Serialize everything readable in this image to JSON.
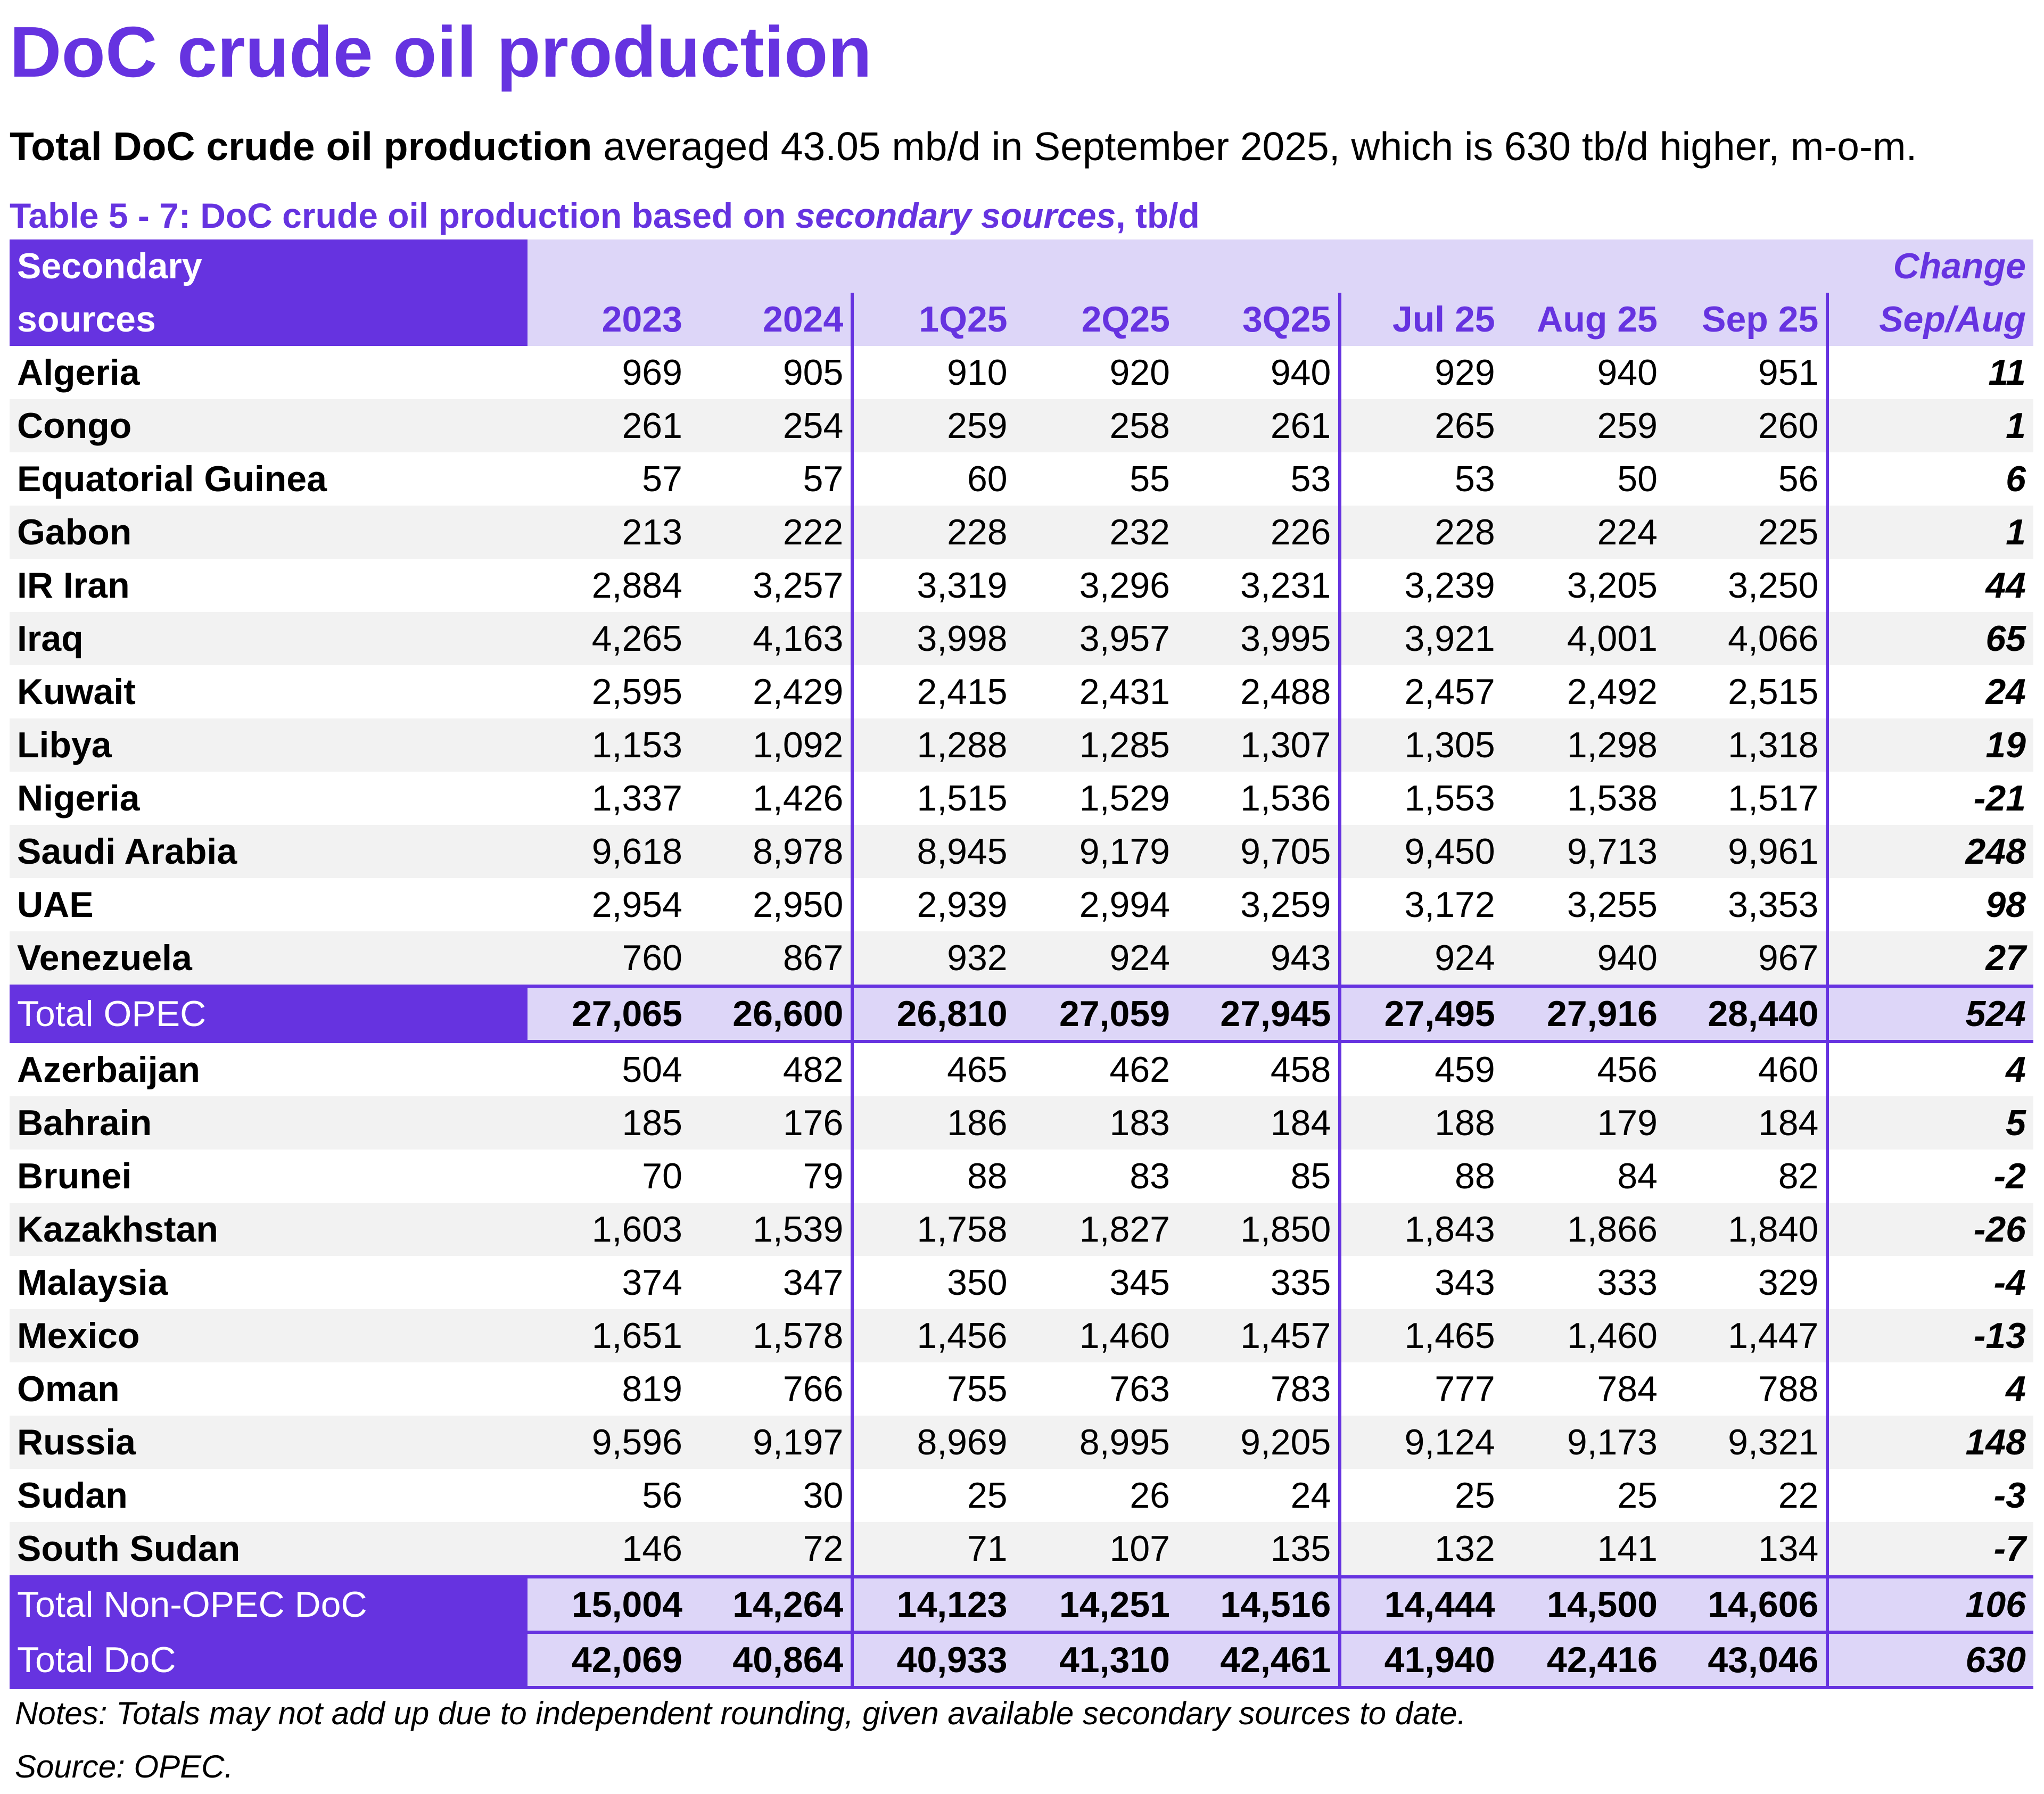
{
  "title": "DoC crude oil production",
  "lead": {
    "bold": "Total DoC crude oil production",
    "rest": " averaged 43.05 mb/d in September 2025, which is 630 tb/d higher, m-o-m."
  },
  "caption": {
    "prefix": "Table 5 - 7: DoC crude oil production based on ",
    "italic": "secondary sources",
    "suffix": ", tb/d"
  },
  "header": {
    "label_line1": "Secondary",
    "label_line2": "sources",
    "columns": [
      "2023",
      "2024",
      "1Q25",
      "2Q25",
      "3Q25",
      "Jul 25",
      "Aug 25",
      "Sep 25"
    ],
    "change_line1": "Change",
    "change_line2": "Sep/Aug"
  },
  "opec_rows": [
    {
      "name": "Algeria",
      "values": [
        "969",
        "905",
        "910",
        "920",
        "940",
        "929",
        "940",
        "951"
      ],
      "change": "11"
    },
    {
      "name": "Congo",
      "values": [
        "261",
        "254",
        "259",
        "258",
        "261",
        "265",
        "259",
        "260"
      ],
      "change": "1"
    },
    {
      "name": "Equatorial Guinea",
      "values": [
        "57",
        "57",
        "60",
        "55",
        "53",
        "53",
        "50",
        "56"
      ],
      "change": "6"
    },
    {
      "name": "Gabon",
      "values": [
        "213",
        "222",
        "228",
        "232",
        "226",
        "228",
        "224",
        "225"
      ],
      "change": "1"
    },
    {
      "name": "IR Iran",
      "values": [
        "2,884",
        "3,257",
        "3,319",
        "3,296",
        "3,231",
        "3,239",
        "3,205",
        "3,250"
      ],
      "change": "44"
    },
    {
      "name": "Iraq",
      "values": [
        "4,265",
        "4,163",
        "3,998",
        "3,957",
        "3,995",
        "3,921",
        "4,001",
        "4,066"
      ],
      "change": "65"
    },
    {
      "name": "Kuwait",
      "values": [
        "2,595",
        "2,429",
        "2,415",
        "2,431",
        "2,488",
        "2,457",
        "2,492",
        "2,515"
      ],
      "change": "24"
    },
    {
      "name": "Libya",
      "values": [
        "1,153",
        "1,092",
        "1,288",
        "1,285",
        "1,307",
        "1,305",
        "1,298",
        "1,318"
      ],
      "change": "19"
    },
    {
      "name": "Nigeria",
      "values": [
        "1,337",
        "1,426",
        "1,515",
        "1,529",
        "1,536",
        "1,553",
        "1,538",
        "1,517"
      ],
      "change": "-21"
    },
    {
      "name": "Saudi Arabia",
      "values": [
        "9,618",
        "8,978",
        "8,945",
        "9,179",
        "9,705",
        "9,450",
        "9,713",
        "9,961"
      ],
      "change": "248"
    },
    {
      "name": "UAE",
      "values": [
        "2,954",
        "2,950",
        "2,939",
        "2,994",
        "3,259",
        "3,172",
        "3,255",
        "3,353"
      ],
      "change": "98"
    },
    {
      "name": "Venezuela",
      "values": [
        "760",
        "867",
        "932",
        "924",
        "943",
        "924",
        "940",
        "967"
      ],
      "change": "27"
    }
  ],
  "total_opec": {
    "name": "Total  OPEC",
    "values": [
      "27,065",
      "26,600",
      "26,810",
      "27,059",
      "27,945",
      "27,495",
      "27,916",
      "28,440"
    ],
    "change": "524"
  },
  "nonopec_rows": [
    {
      "name": "Azerbaijan",
      "values": [
        "504",
        "482",
        "465",
        "462",
        "458",
        "459",
        "456",
        "460"
      ],
      "change": "4"
    },
    {
      "name": "Bahrain",
      "values": [
        "185",
        "176",
        "186",
        "183",
        "184",
        "188",
        "179",
        "184"
      ],
      "change": "5"
    },
    {
      "name": "Brunei",
      "values": [
        "70",
        "79",
        "88",
        "83",
        "85",
        "88",
        "84",
        "82"
      ],
      "change": "-2"
    },
    {
      "name": "Kazakhstan",
      "values": [
        "1,603",
        "1,539",
        "1,758",
        "1,827",
        "1,850",
        "1,843",
        "1,866",
        "1,840"
      ],
      "change": "-26"
    },
    {
      "name": "Malaysia",
      "values": [
        "374",
        "347",
        "350",
        "345",
        "335",
        "343",
        "333",
        "329"
      ],
      "change": "-4"
    },
    {
      "name": "Mexico",
      "values": [
        "1,651",
        "1,578",
        "1,456",
        "1,460",
        "1,457",
        "1,465",
        "1,460",
        "1,447"
      ],
      "change": "-13"
    },
    {
      "name": "Oman",
      "values": [
        "819",
        "766",
        "755",
        "763",
        "783",
        "777",
        "784",
        "788"
      ],
      "change": "4"
    },
    {
      "name": "Russia",
      "values": [
        "9,596",
        "9,197",
        "8,969",
        "8,995",
        "9,205",
        "9,124",
        "9,173",
        "9,321"
      ],
      "change": "148"
    },
    {
      "name": "Sudan",
      "values": [
        "56",
        "30",
        "25",
        "26",
        "24",
        "25",
        "25",
        "22"
      ],
      "change": "-3"
    },
    {
      "name": "South Sudan",
      "values": [
        "146",
        "72",
        "71",
        "107",
        "135",
        "132",
        "141",
        "134"
      ],
      "change": "-7"
    }
  ],
  "total_nonopec": {
    "name": "Total Non-OPEC DoC",
    "values": [
      "15,004",
      "14,264",
      "14,123",
      "14,251",
      "14,516",
      "14,444",
      "14,500",
      "14,606"
    ],
    "change": "106"
  },
  "total_doc": {
    "name": "Total DoC",
    "values": [
      "42,069",
      "40,864",
      "40,933",
      "41,310",
      "42,461",
      "41,940",
      "42,416",
      "43,046"
    ],
    "change": "630"
  },
  "notes": "Notes: Totals may not add up due to independent rounding, given available secondary sources to date.",
  "source": "Source: OPEC.",
  "colors": {
    "accent": "#6633e0",
    "header_bg": "#ddd6f8",
    "stripe": "#f2f2f2"
  }
}
